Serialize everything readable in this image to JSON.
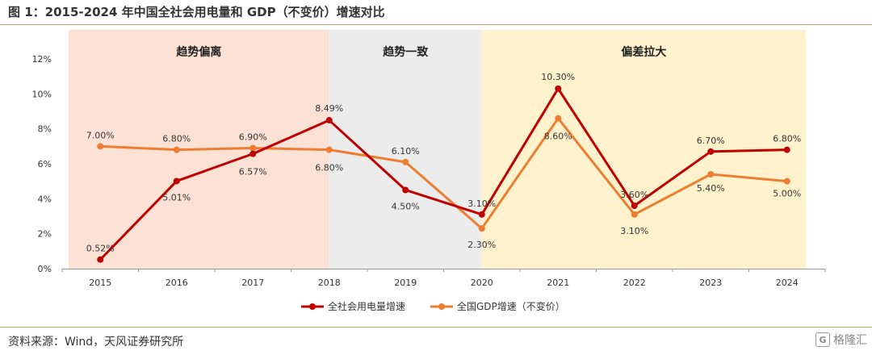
{
  "title": "图 1：2015-2024 年中国全社会用电量和 GDP（不变价）增速对比",
  "source": "资料来源：Wind，天风证券研究所",
  "watermark": {
    "text": "格隆汇",
    "logo_char": "G"
  },
  "chart_data": {
    "type": "line",
    "categories": [
      "2015",
      "2016",
      "2017",
      "2018",
      "2019",
      "2020",
      "2021",
      "2022",
      "2023",
      "2024"
    ],
    "ylim": [
      0,
      12
    ],
    "yticks": [
      0,
      2,
      4,
      6,
      8,
      10,
      12
    ],
    "ytick_labels": [
      "0%",
      "2%",
      "4%",
      "6%",
      "8%",
      "10%",
      "12%"
    ],
    "grid": false,
    "legend_position": "bottom",
    "series": [
      {
        "name": "全社会用电量增速",
        "color": "#c00000",
        "values": [
          0.52,
          5.01,
          6.57,
          8.49,
          4.5,
          3.1,
          10.3,
          3.6,
          6.7,
          6.8
        ],
        "labels": [
          "0.52%",
          "5.01%",
          "6.57%",
          "8.49%",
          "4.50%",
          "3.10%",
          "10.30%",
          "3.60%",
          "6.70%",
          "6.80%"
        ]
      },
      {
        "name": "全国GDP增速（不变价）",
        "color": "#ed7d31",
        "values": [
          7.0,
          6.8,
          6.9,
          6.8,
          6.1,
          2.3,
          8.6,
          3.1,
          5.4,
          5.0
        ],
        "labels": [
          "7.00%",
          "6.80%",
          "6.90%",
          "6.80%",
          "6.10%",
          "2.30%",
          "8.60%",
          "3.10%",
          "5.40%",
          "5.00%"
        ]
      }
    ],
    "regions": [
      {
        "label": "趋势偏离",
        "from": 0,
        "to": 3,
        "color": "#fbe2d5"
      },
      {
        "label": "趋势一致",
        "from": 3,
        "to": 5,
        "color": "#ececec"
      },
      {
        "label": "偏差拉大",
        "from": 5,
        "to": 9,
        "color": "#fff2cc"
      }
    ]
  }
}
